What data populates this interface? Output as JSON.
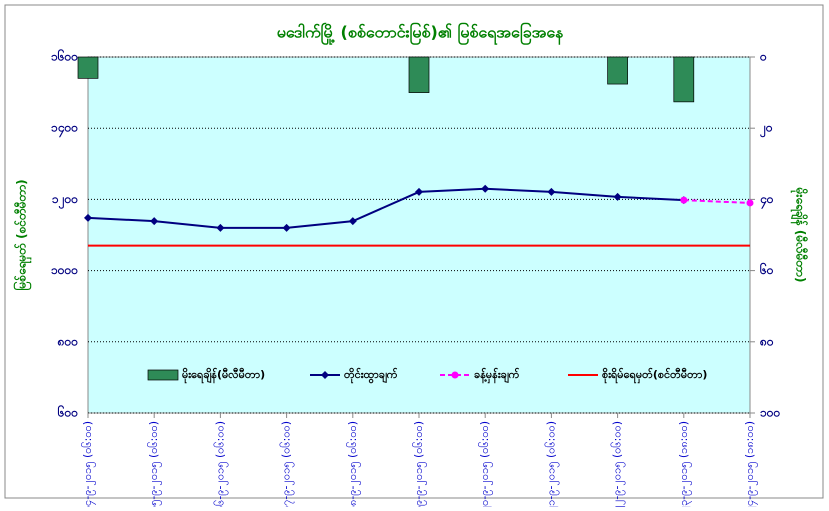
{
  "chart_data": {
    "type": "combo",
    "title": "မဒေါက်မြို့ (စစ်တောင်းမြစ်)၏ မြစ်ရေအခြေအနေ",
    "y_label": "မြစ်ရေမှတ် (စင်တီမီတာ)",
    "y2_label": "မိုးရေချိန် (မီလီမီတာ)",
    "categories": [
      "၁၄-၉-၂၀၁၅ (၀၆:၀၀)",
      "၁၅-၉-၂၀၁၅ (၀၆:၀၀)",
      "၁၆-၉-၂၀၁၅ (၀၆:၀၀)",
      "၁၇-၉-၂၀၁၅ (၀၆:၀၀)",
      "၁၈-၉-၂၀၁၅ (၀၆:၀၀)",
      "၁၉-၉-၂၀၁၅ (၀၆:၀၀)",
      "၂၀-၉-၂၀၁၅ (၀၆:၀၀)",
      "၂၁-၉-၂၀၁၅ (၀၆:၀၀)",
      "၂၂-၉-၂၀၁၅ (၀၆:၀၀)",
      "၂၃-၉-၂၀၁၅ (၁၈:၀၀)",
      "၂၄-၉-၂၀၁၅ (၁၈:၀၀)"
    ],
    "series": [
      {
        "name": "မိုးရေချိန်(မီလီမီတာ)",
        "kind": "bar",
        "axis": "y2",
        "color": "#2e8b57",
        "values": [
          6,
          null,
          null,
          null,
          null,
          10,
          null,
          null,
          7.6,
          12.6,
          null
        ]
      },
      {
        "name": "တိုင်းထွာချက်",
        "kind": "line",
        "color": "#000080",
        "values": [
          1148,
          1139,
          1120,
          1120,
          1139,
          1221,
          1230,
          1221,
          1207,
          1198,
          null
        ]
      },
      {
        "name": "ခန့်မှန်းချက်",
        "kind": "dashed",
        "color": "#ff00ff",
        "values": [
          null,
          null,
          null,
          null,
          null,
          null,
          null,
          null,
          null,
          1198,
          1190
        ]
      },
      {
        "name": "စိုးရိမ်ရေမှတ်(စင်တီမီတာ)",
        "kind": "hline",
        "color": "#ff0000",
        "values": [
          1070,
          1070,
          1070,
          1070,
          1070,
          1070,
          1070,
          1070,
          1070,
          1070,
          1070
        ]
      }
    ],
    "ylim": [
      600,
      1600
    ],
    "yticks": [
      {
        "value": 600,
        "label": "၆၀၀"
      },
      {
        "value": 800,
        "label": "၈၀၀"
      },
      {
        "value": 1000,
        "label": "၁၀၀၀"
      },
      {
        "value": 1200,
        "label": "၁၂၀၀"
      },
      {
        "value": 1400,
        "label": "၁၄၀၀"
      },
      {
        "value": 1600,
        "label": "၁၆၀၀"
      }
    ],
    "y2lim": [
      0,
      100
    ],
    "y2ticks": [
      {
        "value": 0,
        "label": "၀"
      },
      {
        "value": 20,
        "label": "၂၀"
      },
      {
        "value": 40,
        "label": "၄၀"
      },
      {
        "value": 60,
        "label": "၆၀"
      },
      {
        "value": 80,
        "label": "၈၀"
      },
      {
        "value": 100,
        "label": "၁၀၀"
      }
    ],
    "y2_inverted": true,
    "grid": true
  }
}
